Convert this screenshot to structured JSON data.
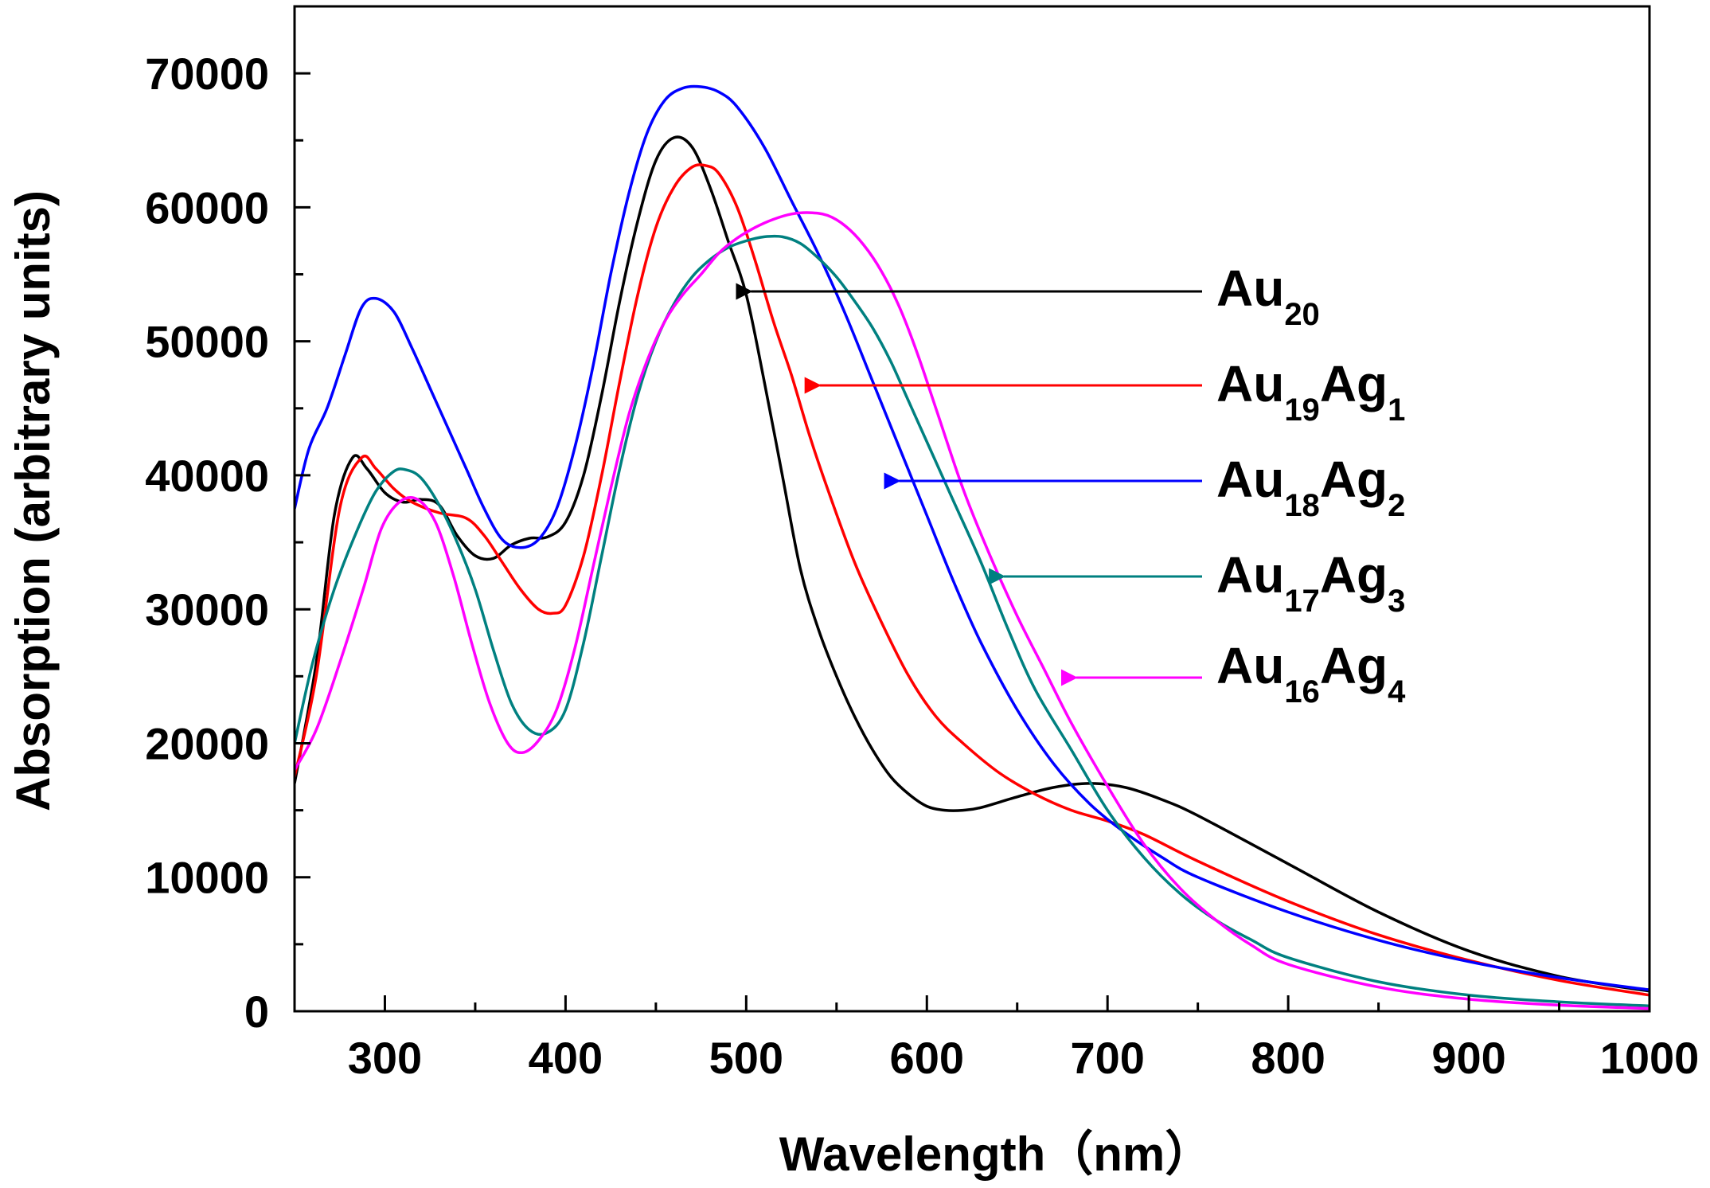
{
  "chart_data": {
    "type": "line",
    "title": "",
    "xlabel": "Wavelength（nm）",
    "ylabel": "Absorption (arbitrary units)",
    "xlim": [
      250,
      1000
    ],
    "ylim": [
      0,
      75000
    ],
    "x_ticks": [
      300,
      400,
      500,
      600,
      700,
      800,
      900,
      1000
    ],
    "x_tick_labels": [
      "300",
      "400",
      "500",
      "600",
      "700",
      "800",
      "900",
      "1000"
    ],
    "y_ticks": [
      0,
      10000,
      20000,
      30000,
      40000,
      50000,
      60000,
      70000
    ],
    "y_tick_labels": [
      "0",
      "10000",
      "20000",
      "30000",
      "40000",
      "50000",
      "60000",
      "70000"
    ],
    "grid": false,
    "series": [
      {
        "name": "Au20",
        "label_main": [
          "Au"
        ],
        "label_sub": [
          "20"
        ],
        "color": "#000000",
        "arrow_x": 500,
        "arrow_y": 53500,
        "points": [
          [
            250,
            17000
          ],
          [
            262,
            26000
          ],
          [
            272,
            37000
          ],
          [
            282,
            41300
          ],
          [
            290,
            40500
          ],
          [
            300,
            38700
          ],
          [
            310,
            38000
          ],
          [
            320,
            38200
          ],
          [
            330,
            37800
          ],
          [
            340,
            35500
          ],
          [
            350,
            34000
          ],
          [
            360,
            33800
          ],
          [
            370,
            34800
          ],
          [
            380,
            35300
          ],
          [
            390,
            35400
          ],
          [
            400,
            36500
          ],
          [
            410,
            40000
          ],
          [
            420,
            46000
          ],
          [
            430,
            53000
          ],
          [
            440,
            59000
          ],
          [
            450,
            63500
          ],
          [
            460,
            65200
          ],
          [
            470,
            64500
          ],
          [
            480,
            61500
          ],
          [
            490,
            57500
          ],
          [
            500,
            53500
          ],
          [
            510,
            47000
          ],
          [
            520,
            40000
          ],
          [
            530,
            33000
          ],
          [
            540,
            28500
          ],
          [
            550,
            25000
          ],
          [
            560,
            22000
          ],
          [
            570,
            19500
          ],
          [
            580,
            17500
          ],
          [
            590,
            16200
          ],
          [
            600,
            15300
          ],
          [
            610,
            15000
          ],
          [
            620,
            15000
          ],
          [
            630,
            15200
          ],
          [
            650,
            16000
          ],
          [
            670,
            16700
          ],
          [
            690,
            17000
          ],
          [
            710,
            16700
          ],
          [
            730,
            15800
          ],
          [
            750,
            14600
          ],
          [
            800,
            11000
          ],
          [
            850,
            7400
          ],
          [
            900,
            4500
          ],
          [
            950,
            2600
          ],
          [
            1000,
            1500
          ]
        ]
      },
      {
        "name": "Au19Ag1",
        "label_main": [
          "Au",
          "Ag"
        ],
        "label_sub": [
          "19",
          "1"
        ],
        "color": "#ff0000",
        "arrow_x": 538,
        "arrow_y": 46500,
        "points": [
          [
            250,
            17500
          ],
          [
            262,
            25000
          ],
          [
            275,
            37500
          ],
          [
            287,
            41300
          ],
          [
            295,
            40500
          ],
          [
            305,
            39000
          ],
          [
            315,
            38000
          ],
          [
            330,
            37200
          ],
          [
            345,
            36800
          ],
          [
            355,
            35500
          ],
          [
            365,
            33500
          ],
          [
            375,
            31500
          ],
          [
            385,
            30000
          ],
          [
            393,
            29700
          ],
          [
            400,
            30300
          ],
          [
            410,
            34000
          ],
          [
            420,
            40000
          ],
          [
            430,
            47000
          ],
          [
            440,
            53500
          ],
          [
            450,
            58500
          ],
          [
            460,
            61500
          ],
          [
            470,
            63000
          ],
          [
            478,
            63100
          ],
          [
            485,
            62500
          ],
          [
            495,
            60000
          ],
          [
            505,
            56000
          ],
          [
            515,
            51500
          ],
          [
            525,
            47500
          ],
          [
            535,
            43000
          ],
          [
            545,
            39000
          ],
          [
            560,
            33500
          ],
          [
            575,
            29000
          ],
          [
            590,
            25000
          ],
          [
            605,
            22000
          ],
          [
            620,
            20000
          ],
          [
            640,
            17800
          ],
          [
            660,
            16200
          ],
          [
            680,
            15000
          ],
          [
            700,
            14200
          ],
          [
            720,
            13200
          ],
          [
            750,
            11200
          ],
          [
            800,
            8200
          ],
          [
            850,
            5700
          ],
          [
            900,
            3800
          ],
          [
            950,
            2300
          ],
          [
            1000,
            1200
          ]
        ]
      },
      {
        "name": "Au18Ag2",
        "label_main": [
          "Au",
          "Ag"
        ],
        "label_sub": [
          "18",
          "2"
        ],
        "color": "#0000ff",
        "arrow_x": 582,
        "arrow_y": 39500,
        "points": [
          [
            250,
            37500
          ],
          [
            258,
            42000
          ],
          [
            268,
            45000
          ],
          [
            278,
            49000
          ],
          [
            287,
            52500
          ],
          [
            295,
            53200
          ],
          [
            305,
            52200
          ],
          [
            315,
            49500
          ],
          [
            325,
            46500
          ],
          [
            335,
            43500
          ],
          [
            345,
            40500
          ],
          [
            355,
            37500
          ],
          [
            365,
            35200
          ],
          [
            375,
            34600
          ],
          [
            385,
            35200
          ],
          [
            395,
            37500
          ],
          [
            405,
            42000
          ],
          [
            415,
            48000
          ],
          [
            425,
            55000
          ],
          [
            435,
            61000
          ],
          [
            445,
            65500
          ],
          [
            455,
            68000
          ],
          [
            465,
            68900
          ],
          [
            475,
            69000
          ],
          [
            485,
            68600
          ],
          [
            495,
            67500
          ],
          [
            510,
            64500
          ],
          [
            525,
            60500
          ],
          [
            540,
            56500
          ],
          [
            555,
            52000
          ],
          [
            570,
            47000
          ],
          [
            585,
            42000
          ],
          [
            600,
            37000
          ],
          [
            615,
            32000
          ],
          [
            630,
            27500
          ],
          [
            650,
            22500
          ],
          [
            670,
            18500
          ],
          [
            690,
            15500
          ],
          [
            710,
            13300
          ],
          [
            730,
            11500
          ],
          [
            750,
            10000
          ],
          [
            800,
            7400
          ],
          [
            850,
            5300
          ],
          [
            900,
            3700
          ],
          [
            950,
            2500
          ],
          [
            1000,
            1600
          ]
        ]
      },
      {
        "name": "Au17Ag3",
        "label_main": [
          "Au",
          "Ag"
        ],
        "label_sub": [
          "17",
          "3"
        ],
        "color": "#008080",
        "arrow_x": 640,
        "arrow_y": 32500,
        "points": [
          [
            250,
            20000
          ],
          [
            260,
            26000
          ],
          [
            272,
            31500
          ],
          [
            285,
            36000
          ],
          [
            295,
            38800
          ],
          [
            305,
            40300
          ],
          [
            312,
            40400
          ],
          [
            320,
            39800
          ],
          [
            330,
            37800
          ],
          [
            340,
            35000
          ],
          [
            350,
            31500
          ],
          [
            360,
            27000
          ],
          [
            370,
            23000
          ],
          [
            380,
            21000
          ],
          [
            390,
            20800
          ],
          [
            400,
            22500
          ],
          [
            410,
            27500
          ],
          [
            420,
            34000
          ],
          [
            430,
            40500
          ],
          [
            440,
            46000
          ],
          [
            450,
            50000
          ],
          [
            460,
            52800
          ],
          [
            470,
            54800
          ],
          [
            480,
            56100
          ],
          [
            490,
            57000
          ],
          [
            500,
            57500
          ],
          [
            510,
            57800
          ],
          [
            520,
            57800
          ],
          [
            530,
            57300
          ],
          [
            540,
            56200
          ],
          [
            550,
            54800
          ],
          [
            560,
            53000
          ],
          [
            570,
            51000
          ],
          [
            580,
            48500
          ],
          [
            590,
            45500
          ],
          [
            600,
            42500
          ],
          [
            615,
            38000
          ],
          [
            630,
            33500
          ],
          [
            645,
            28500
          ],
          [
            660,
            24000
          ],
          [
            680,
            19500
          ],
          [
            700,
            15000
          ],
          [
            720,
            11500
          ],
          [
            740,
            8800
          ],
          [
            760,
            6800
          ],
          [
            780,
            5300
          ],
          [
            800,
            4000
          ],
          [
            850,
            2200
          ],
          [
            900,
            1200
          ],
          [
            950,
            700
          ],
          [
            1000,
            400
          ]
        ]
      },
      {
        "name": "Au16Ag4",
        "label_main": [
          "Au",
          "Ag"
        ],
        "label_sub": [
          "16",
          "4"
        ],
        "color": "#ff00ff",
        "arrow_x": 680,
        "arrow_y": 25000,
        "points": [
          [
            250,
            18000
          ],
          [
            262,
            21000
          ],
          [
            275,
            26000
          ],
          [
            288,
            31500
          ],
          [
            298,
            36000
          ],
          [
            308,
            38000
          ],
          [
            318,
            38200
          ],
          [
            328,
            36500
          ],
          [
            338,
            32500
          ],
          [
            348,
            27500
          ],
          [
            358,
            23000
          ],
          [
            368,
            20000
          ],
          [
            376,
            19300
          ],
          [
            385,
            20200
          ],
          [
            395,
            22500
          ],
          [
            405,
            27000
          ],
          [
            415,
            33000
          ],
          [
            425,
            39000
          ],
          [
            435,
            44500
          ],
          [
            445,
            48500
          ],
          [
            455,
            51500
          ],
          [
            465,
            53500
          ],
          [
            475,
            55000
          ],
          [
            485,
            56600
          ],
          [
            495,
            57700
          ],
          [
            505,
            58500
          ],
          [
            515,
            59100
          ],
          [
            525,
            59500
          ],
          [
            535,
            59600
          ],
          [
            545,
            59400
          ],
          [
            555,
            58600
          ],
          [
            565,
            57200
          ],
          [
            575,
            55200
          ],
          [
            585,
            52500
          ],
          [
            595,
            49000
          ],
          [
            605,
            45000
          ],
          [
            620,
            39000
          ],
          [
            635,
            34000
          ],
          [
            650,
            29500
          ],
          [
            665,
            25500
          ],
          [
            680,
            21500
          ],
          [
            700,
            16800
          ],
          [
            720,
            12500
          ],
          [
            740,
            9200
          ],
          [
            760,
            6800
          ],
          [
            780,
            4900
          ],
          [
            800,
            3500
          ],
          [
            850,
            1800
          ],
          [
            900,
            900
          ],
          [
            950,
            450
          ],
          [
            1000,
            200
          ]
        ]
      }
    ],
    "legend": [
      {
        "main": [
          "Au"
        ],
        "sub": [
          "20"
        ],
        "color": "#000000"
      },
      {
        "main": [
          "Au",
          "Ag"
        ],
        "sub": [
          "19",
          "1"
        ],
        "color": "#ff0000"
      },
      {
        "main": [
          "Au",
          "Ag"
        ],
        "sub": [
          "18",
          "2"
        ],
        "color": "#0000ff"
      },
      {
        "main": [
          "Au",
          "Ag"
        ],
        "sub": [
          "17",
          "3"
        ],
        "color": "#008080"
      },
      {
        "main": [
          "Au",
          "Ag"
        ],
        "sub": [
          "16",
          "4"
        ],
        "color": "#ff00ff"
      }
    ]
  }
}
